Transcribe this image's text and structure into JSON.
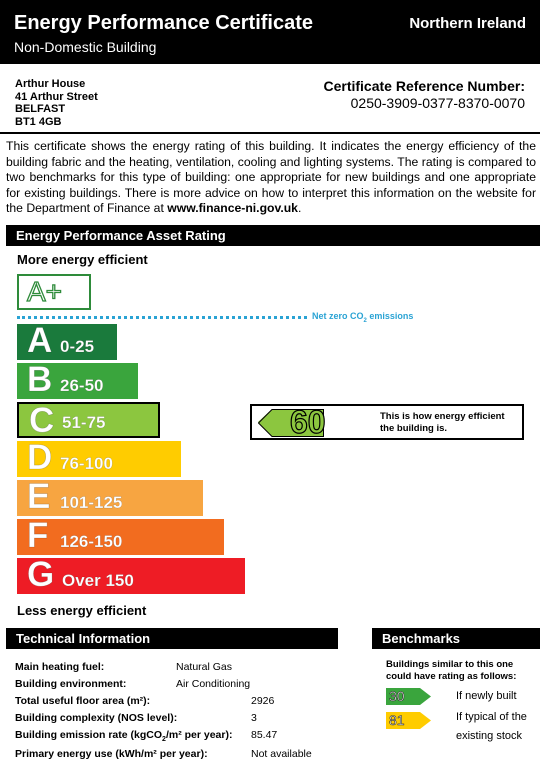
{
  "header": {
    "title": "Energy Performance Certificate",
    "subtitle": "Non-Domestic Building",
    "region": "Northern Ireland"
  },
  "address": {
    "line1": "Arthur House",
    "line2": "41 Arthur Street",
    "line3": "BELFAST",
    "line4": "BT1 4GB"
  },
  "certificate": {
    "ref_label": "Certificate Reference Number:",
    "ref_number": "0250-3909-0377-8370-0070"
  },
  "intro": {
    "text": "This certificate shows the energy rating of this building. It indicates the energy efficiency of the building fabric and the heating, ventilation, cooling and lighting systems. The rating is compared to two benchmarks for this type of building: one appropriate for new buildings and one appropriate for existing buildings. There is more advice on how to interpret this information on the website for the Department of Finance at ",
    "link": "www.finance-ni.gov.uk",
    "end": "."
  },
  "rating_section": {
    "heading": "Energy Performance Asset Rating",
    "more_efficient": "More energy efficient",
    "less_efficient": "Less energy efficient",
    "aplus_label": "A+",
    "netzero_label": "Net zero CO",
    "netzero_sub": "2",
    "netzero_suffix": " emissions",
    "bands": [
      {
        "letter": "A",
        "range": "0-25",
        "color": "#1a7a3c"
      },
      {
        "letter": "B",
        "range": "26-50",
        "color": "#3aa53d"
      },
      {
        "letter": "C",
        "range": "51-75",
        "color": "#8cc63f"
      },
      {
        "letter": "D",
        "range": "76-100",
        "color": "#ffcc00"
      },
      {
        "letter": "E",
        "range": "101-125",
        "color": "#f7a541"
      },
      {
        "letter": "F",
        "range": "126-150",
        "color": "#f26c1f"
      },
      {
        "letter": "G",
        "range": "Over 150",
        "color": "#ee1c25"
      }
    ],
    "current_band": "C",
    "current_rating": "60",
    "rating_desc": "This is how energy efficient the building is."
  },
  "technical": {
    "heading": "Technical Information",
    "rows": [
      {
        "label": "Main heating fuel:",
        "value": "Natural Gas"
      },
      {
        "label": "Building environment:",
        "value": "Air Conditioning"
      },
      {
        "label": "Total useful floor area (m²):",
        "value": "2926"
      },
      {
        "label": "Building complexity (NOS level):",
        "value": "3"
      },
      {
        "label_pre": "Building emission rate (kgCO",
        "label_sub": "2",
        "label_post": "/m² per year):",
        "value": "85.47"
      },
      {
        "label": "Primary energy use (kWh/m² per year):",
        "value": "Not available"
      }
    ]
  },
  "benchmarks": {
    "heading": "Benchmarks",
    "intro": "Buildings similar to this one could have rating as follows:",
    "new_value": "30",
    "new_label": "If newly built",
    "new_color": "#3aa53d",
    "existing_value": "81",
    "existing_label": "If typical of the existing stock",
    "existing_color": "#ffcc00"
  }
}
